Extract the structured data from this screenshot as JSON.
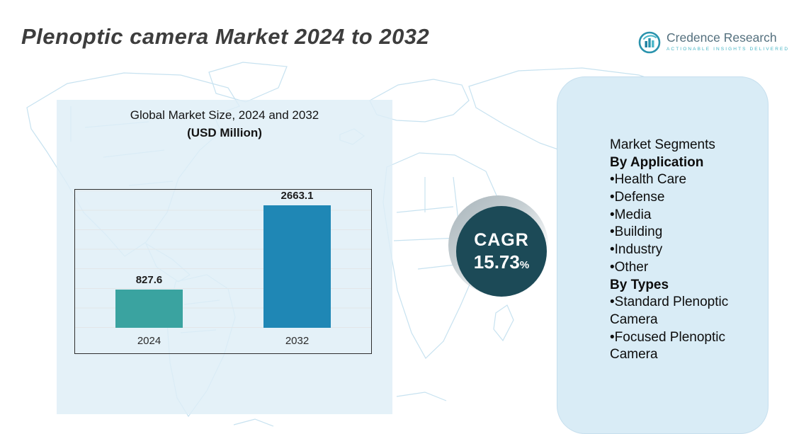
{
  "page": {
    "title": "Plenoptic camera Market 2024 to 2032"
  },
  "logo": {
    "brand": "Credence Research",
    "tagline": "Actionable Insights Delivered"
  },
  "chart": {
    "title_line1": "Global Market Size, 2024 and 2032",
    "title_line2": "(USD Million)"
  },
  "chart_data": {
    "type": "bar",
    "title": "Global Market Size, 2024 and 2032 (USD Million)",
    "categories": [
      "2024",
      "2032"
    ],
    "values": [
      827.6,
      2663.1
    ],
    "xlabel": "",
    "ylabel": "",
    "ylim": [
      0,
      3000
    ],
    "grid": "horizontal",
    "legend": "none",
    "bar_colors": [
      "#3aa3a0",
      "#1f87b5"
    ]
  },
  "cagr": {
    "label": "CAGR",
    "value": "15.73",
    "percent_sign": "%"
  },
  "segments": {
    "heading": "Market Segments",
    "by_application_label": "By Application",
    "applications": [
      "Health Care",
      "Defense",
      "Media",
      "Building",
      "Industry",
      "Other"
    ],
    "by_types_label": "By Types",
    "types": [
      "Standard Plenoptic Camera",
      "Focused Plenoptic Camera"
    ]
  },
  "colors": {
    "bar_2024": "#3aa3a0",
    "bar_2032": "#1f87b5",
    "cagr_circle": "#1c4a57",
    "panel_background": "#d9ecf6",
    "map_outline": "#c7e2f0"
  }
}
